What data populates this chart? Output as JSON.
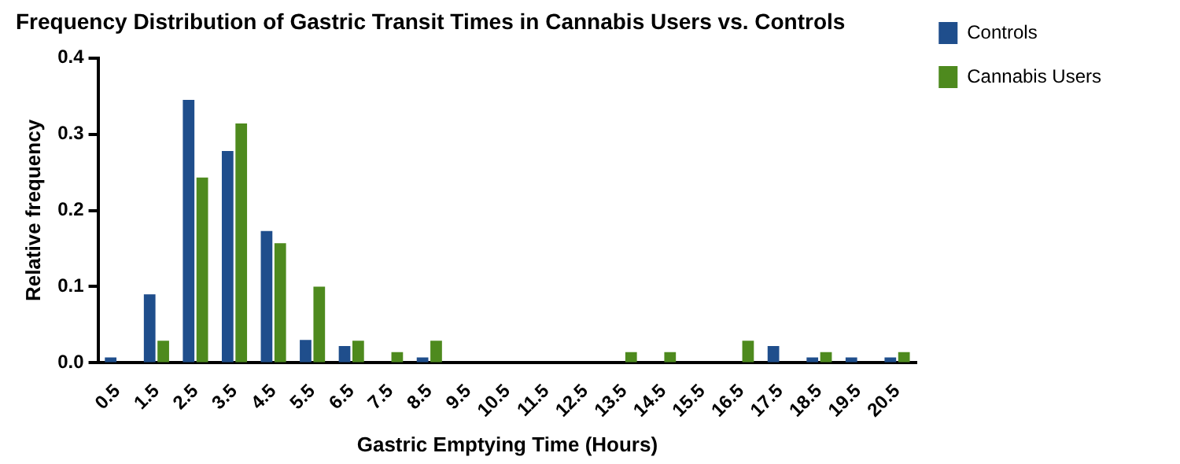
{
  "chart_data": {
    "type": "bar",
    "title": "Frequency Distribution of Gastric Transit Times in Cannabis Users vs. Controls",
    "xlabel": "Gastric Emptying Time (Hours)",
    "ylabel": "Relative frequency",
    "categories": [
      "0.5",
      "1.5",
      "2.5",
      "3.5",
      "4.5",
      "5.5",
      "6.5",
      "7.5",
      "8.5",
      "9.5",
      "10.5",
      "11.5",
      "12.5",
      "13.5",
      "14.5",
      "15.5",
      "16.5",
      "17.5",
      "18.5",
      "19.5",
      "20.5"
    ],
    "series": [
      {
        "name": "Controls",
        "color": "#1f4e8c",
        "values": [
          0.007,
          0.09,
          0.345,
          0.278,
          0.173,
          0.03,
          0.022,
          0,
          0.007,
          0,
          0,
          0,
          0,
          0,
          0,
          0,
          0,
          0.022,
          0.007,
          0.007,
          0.007
        ]
      },
      {
        "name": "Cannabis Users",
        "color": "#4e8a1e",
        "values": [
          0,
          0.029,
          0.243,
          0.314,
          0.157,
          0.1,
          0.029,
          0.014,
          0.029,
          0,
          0,
          0,
          0,
          0.014,
          0.014,
          0,
          0.029,
          0,
          0.014,
          0,
          0.014
        ]
      }
    ],
    "ylim": [
      0,
      0.4
    ],
    "yticks": [
      {
        "value": 0,
        "label": "0.0"
      },
      {
        "value": 0.1,
        "label": "0.1"
      },
      {
        "value": 0.2,
        "label": "0.2"
      },
      {
        "value": 0.3,
        "label": "0.3"
      },
      {
        "value": 0.4,
        "label": "0.4"
      }
    ],
    "grid": false,
    "legend": "top right"
  }
}
